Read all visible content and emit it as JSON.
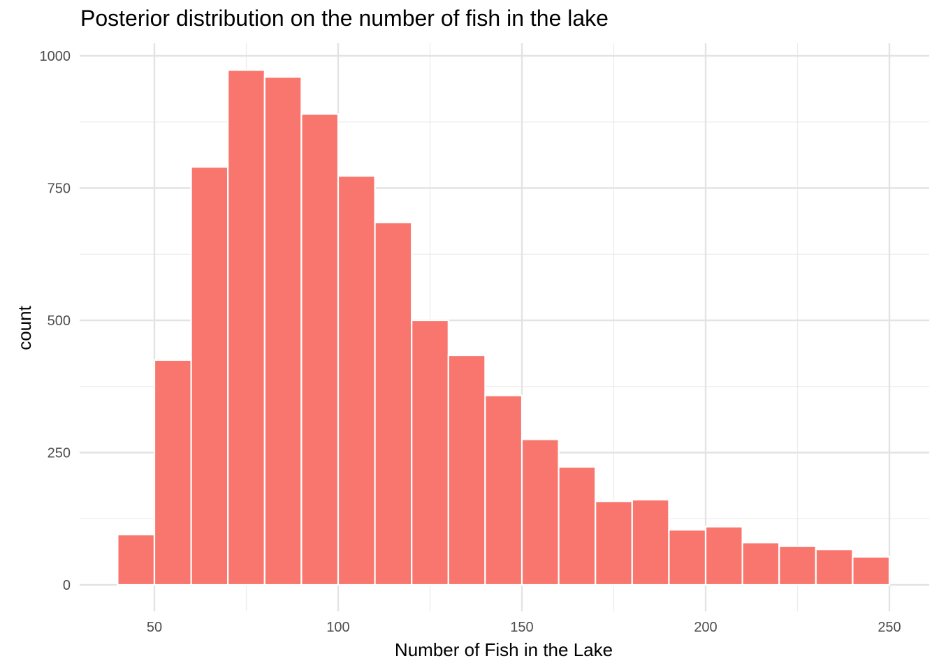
{
  "chart_data": {
    "type": "bar",
    "title": "Posterior distribution on the number of fish in the lake",
    "xlabel": "Number of Fish in the Lake",
    "ylabel": "count",
    "bar_color": "#F8766D",
    "grid": true,
    "xlim": [
      30,
      256
    ],
    "ylim": [
      0,
      1000
    ],
    "x_ticks": [
      50,
      100,
      150,
      200,
      250
    ],
    "y_ticks": [
      0,
      250,
      500,
      750,
      1000
    ],
    "bins": [
      {
        "x0": 40,
        "x1": 50,
        "count": 95
      },
      {
        "x0": 50,
        "x1": 60,
        "count": 425
      },
      {
        "x0": 60,
        "x1": 70,
        "count": 790
      },
      {
        "x0": 70,
        "x1": 80,
        "count": 973
      },
      {
        "x0": 80,
        "x1": 90,
        "count": 960
      },
      {
        "x0": 90,
        "x1": 100,
        "count": 890
      },
      {
        "x0": 100,
        "x1": 110,
        "count": 773
      },
      {
        "x0": 110,
        "x1": 120,
        "count": 685
      },
      {
        "x0": 120,
        "x1": 130,
        "count": 500
      },
      {
        "x0": 130,
        "x1": 140,
        "count": 434
      },
      {
        "x0": 140,
        "x1": 150,
        "count": 358
      },
      {
        "x0": 150,
        "x1": 160,
        "count": 275
      },
      {
        "x0": 160,
        "x1": 170,
        "count": 223
      },
      {
        "x0": 170,
        "x1": 180,
        "count": 158
      },
      {
        "x0": 180,
        "x1": 190,
        "count": 161
      },
      {
        "x0": 190,
        "x1": 200,
        "count": 104
      },
      {
        "x0": 200,
        "x1": 210,
        "count": 110
      },
      {
        "x0": 210,
        "x1": 220,
        "count": 80
      },
      {
        "x0": 220,
        "x1": 230,
        "count": 73
      },
      {
        "x0": 230,
        "x1": 240,
        "count": 67
      },
      {
        "x0": 240,
        "x1": 250,
        "count": 53
      }
    ]
  }
}
